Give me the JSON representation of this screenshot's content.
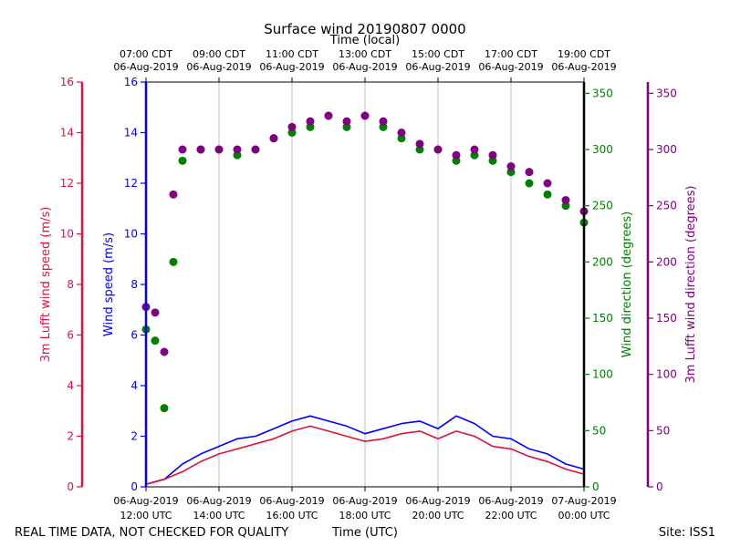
{
  "chart_data": {
    "type": "scatter",
    "title": "Surface wind 20190807 0000",
    "top_xlabel": "Time (local)",
    "bottom_xlabel": "Time (UTC)",
    "footer_left": "REAL TIME DATA, NOT CHECKED FOR QUALITY",
    "footer_right": "Site: ISS1",
    "x_range_hours_utc": [
      12,
      24
    ],
    "bottom_ticks": [
      {
        "hour": 12,
        "line1": "06-Aug-2019",
        "line2": "12:00 UTC"
      },
      {
        "hour": 14,
        "line1": "06-Aug-2019",
        "line2": "14:00 UTC"
      },
      {
        "hour": 16,
        "line1": "06-Aug-2019",
        "line2": "16:00 UTC"
      },
      {
        "hour": 18,
        "line1": "06-Aug-2019",
        "line2": "18:00 UTC"
      },
      {
        "hour": 20,
        "line1": "06-Aug-2019",
        "line2": "20:00 UTC"
      },
      {
        "hour": 22,
        "line1": "06-Aug-2019",
        "line2": "22:00 UTC"
      },
      {
        "hour": 24,
        "line1": "07-Aug-2019",
        "line2": "00:00 UTC"
      }
    ],
    "top_ticks": [
      {
        "hour": 12,
        "line1": "07:00 CDT",
        "line2": "06-Aug-2019"
      },
      {
        "hour": 14,
        "line1": "09:00 CDT",
        "line2": "06-Aug-2019"
      },
      {
        "hour": 16,
        "line1": "11:00 CDT",
        "line2": "06-Aug-2019"
      },
      {
        "hour": 18,
        "line1": "13:00 CDT",
        "line2": "06-Aug-2019"
      },
      {
        "hour": 20,
        "line1": "15:00 CDT",
        "line2": "06-Aug-2019"
      },
      {
        "hour": 22,
        "line1": "17:00 CDT",
        "line2": "06-Aug-2019"
      },
      {
        "hour": 24,
        "line1": "19:00 CDT",
        "line2": "06-Aug-2019"
      }
    ],
    "axes": {
      "lufft_speed": {
        "label": "3m Lufft wind speed (m/s)",
        "color": "#dc143c",
        "range": [
          0,
          16
        ],
        "ticks": [
          0,
          2,
          4,
          6,
          8,
          10,
          12,
          14,
          16
        ]
      },
      "wind_speed": {
        "label": "Wind speed (m/s)",
        "color": "#0000ff",
        "range": [
          0,
          16
        ],
        "ticks": [
          0,
          2,
          4,
          6,
          8,
          10,
          12,
          14,
          16
        ]
      },
      "wind_dir": {
        "label": "Wind direction (degrees)",
        "color": "#008000",
        "range": [
          0,
          360
        ],
        "ticks": [
          0,
          50,
          100,
          150,
          200,
          250,
          300,
          350
        ]
      },
      "lufft_dir": {
        "label": "3m Lufft wind direction (degrees)",
        "color": "#800080",
        "range": [
          0,
          360
        ],
        "ticks": [
          0,
          50,
          100,
          150,
          200,
          250,
          300,
          350
        ]
      }
    },
    "series": [
      {
        "name": "Wind speed",
        "kind": "line",
        "axis": "wind_speed",
        "color": "#0000ff",
        "x": [
          12.0,
          12.5,
          13.0,
          13.5,
          14.0,
          14.5,
          15.0,
          15.5,
          16.0,
          16.5,
          17.0,
          17.5,
          18.0,
          18.5,
          19.0,
          19.5,
          20.0,
          20.5,
          21.0,
          21.5,
          22.0,
          22.5,
          23.0,
          23.5,
          24.0
        ],
        "y": [
          0.1,
          0.3,
          0.9,
          1.3,
          1.6,
          1.9,
          2.0,
          2.3,
          2.6,
          2.8,
          2.6,
          2.4,
          2.1,
          2.3,
          2.5,
          2.6,
          2.3,
          2.8,
          2.5,
          2.0,
          1.9,
          1.5,
          1.3,
          0.9,
          0.7
        ]
      },
      {
        "name": "3m Lufft wind speed",
        "kind": "line",
        "axis": "lufft_speed",
        "color": "#dc143c",
        "x": [
          12.0,
          12.5,
          13.0,
          13.5,
          14.0,
          14.5,
          15.0,
          15.5,
          16.0,
          16.5,
          17.0,
          17.5,
          18.0,
          18.5,
          19.0,
          19.5,
          20.0,
          20.5,
          21.0,
          21.5,
          22.0,
          22.5,
          23.0,
          23.5,
          24.0
        ],
        "y": [
          0.1,
          0.3,
          0.6,
          1.0,
          1.3,
          1.5,
          1.7,
          1.9,
          2.2,
          2.4,
          2.2,
          2.0,
          1.8,
          1.9,
          2.1,
          2.2,
          1.9,
          2.2,
          2.0,
          1.6,
          1.5,
          1.2,
          1.0,
          0.7,
          0.5
        ]
      },
      {
        "name": "Wind direction",
        "kind": "scatter",
        "axis": "wind_dir",
        "color": "#008000",
        "x": [
          12.0,
          12.25,
          12.5,
          12.75,
          13.0,
          13.5,
          14.0,
          14.5,
          15.0,
          15.5,
          16.0,
          16.5,
          17.0,
          17.5,
          18.0,
          18.5,
          19.0,
          19.5,
          20.0,
          20.5,
          21.0,
          21.5,
          22.0,
          22.5,
          23.0,
          23.5,
          24.0
        ],
        "y": [
          140,
          130,
          70,
          200,
          290,
          300,
          300,
          295,
          300,
          310,
          315,
          320,
          330,
          320,
          330,
          320,
          310,
          300,
          300,
          290,
          295,
          290,
          280,
          270,
          260,
          250,
          235
        ]
      },
      {
        "name": "3m Lufft wind direction",
        "kind": "scatter",
        "axis": "lufft_dir",
        "color": "#800080",
        "x": [
          12.0,
          12.25,
          12.5,
          12.75,
          13.0,
          13.5,
          14.0,
          14.5,
          15.0,
          15.5,
          16.0,
          16.5,
          17.0,
          17.5,
          18.0,
          18.5,
          19.0,
          19.5,
          20.0,
          20.5,
          21.0,
          21.5,
          22.0,
          22.5,
          23.0,
          23.5,
          24.0
        ],
        "y": [
          160,
          155,
          120,
          260,
          300,
          300,
          300,
          300,
          300,
          310,
          320,
          325,
          330,
          325,
          330,
          325,
          315,
          305,
          300,
          295,
          300,
          295,
          285,
          280,
          270,
          255,
          245
        ]
      }
    ]
  }
}
